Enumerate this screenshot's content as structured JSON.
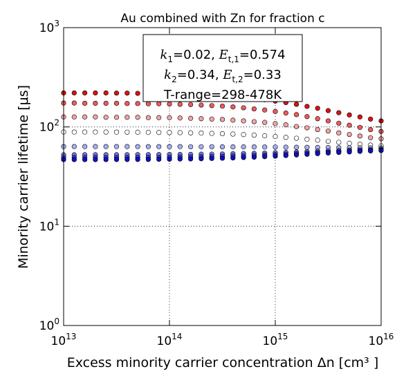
{
  "chart_data": {
    "type": "scatter",
    "title": "Au combined with Zn for fraction c",
    "xlabel": "Excess minority carrier concentration Δn [cm³ ]",
    "ylabel": "Minority carrier lifetime [μs]",
    "xscale": "log",
    "yscale": "log",
    "grid": true,
    "xlim": [
      10000000000000.0,
      1e+16
    ],
    "ylim": [
      1,
      1000
    ],
    "xticks": [
      {
        "value": 10000000000000.0,
        "base": "10",
        "exponent": "13"
      },
      {
        "value": 100000000000000.0,
        "base": "10",
        "exponent": "14"
      },
      {
        "value": 1000000000000000.0,
        "base": "10",
        "exponent": "15"
      },
      {
        "value": 1e+16,
        "base": "10",
        "exponent": "16"
      }
    ],
    "yticks": [
      {
        "value": 1,
        "base": "10",
        "exponent": "0"
      },
      {
        "value": 10,
        "base": "10",
        "exponent": "1"
      },
      {
        "value": 100,
        "base": "10",
        "exponent": "2"
      },
      {
        "value": 1000,
        "base": "10",
        "exponent": "3"
      }
    ],
    "annotation": [
      [
        {
          "text": "k",
          "math": true
        },
        {
          "text": "1",
          "sub": true
        },
        {
          "text": "=0.02, "
        },
        {
          "text": "E",
          "math": true
        },
        {
          "text": "t,1",
          "sub": true
        },
        {
          "text": "=0.574"
        }
      ],
      [
        {
          "text": "k",
          "math": true
        },
        {
          "text": "2",
          "sub": true
        },
        {
          "text": "=0.34, "
        },
        {
          "text": "E",
          "math": true
        },
        {
          "text": "t,2",
          "sub": true
        },
        {
          "text": "=0.33"
        }
      ],
      [
        {
          "text": "T-range=298-478K"
        }
      ]
    ],
    "x": [
      10000000000000.0,
      12590000000000.0,
      15850000000000.0,
      19950000000000.0,
      25120000000000.0,
      31620000000000.0,
      39810000000000.0,
      50120000000000.0,
      63100000000000.0,
      79430000000000.0,
      100000000000000.0,
      125900000000000.0,
      158500000000000.0,
      199500000000000.0,
      251200000000000.0,
      316200000000000.0,
      398100000000000.0,
      501200000000000.0,
      631000000000000.0,
      794300000000000.0,
      1000000000000000.0,
      1259000000000000.0,
      1585000000000000.0,
      1995000000000000.0,
      2512000000000000.0,
      3162000000000000.0,
      3981000000000000.0,
      5012000000000000.0,
      6310000000000000.0,
      7943000000000000.0,
      1e+16
    ],
    "series": [
      {
        "color": "#dd1010",
        "values": [
          220,
          220,
          220,
          220,
          220,
          219,
          219,
          218,
          218,
          217,
          216,
          214,
          213,
          211,
          209,
          206,
          202,
          198,
          194,
          188,
          182,
          176,
          169,
          161,
          154,
          146,
          139,
          132,
          126,
          120,
          115
        ]
      },
      {
        "color": "#ee5a5a",
        "values": [
          174,
          174,
          173,
          173,
          173,
          173,
          172,
          172,
          171,
          171,
          170,
          169,
          168,
          166,
          164,
          162,
          159,
          156,
          152,
          148,
          143,
          138,
          133,
          127,
          121,
          115,
          109,
          104,
          99,
          94,
          90
        ]
      },
      {
        "color": "#f5a3a3",
        "values": [
          126,
          126,
          126,
          126,
          125,
          125,
          125,
          125,
          124,
          124,
          124,
          123,
          122,
          121,
          120,
          119,
          117,
          115,
          113,
          111,
          108,
          105,
          101,
          98,
          94,
          91,
          87,
          84,
          81,
          78,
          76
        ]
      },
      {
        "color": "#ffffff",
        "values": [
          88.9,
          88.8,
          88.8,
          88.8,
          88.7,
          88.6,
          88.5,
          88.4,
          88.2,
          88.0,
          87.8,
          87.5,
          87.1,
          86.7,
          86.1,
          85.5,
          84.7,
          83.7,
          82.7,
          81.4,
          80.1,
          78.5,
          76.9,
          75.2,
          73.5,
          71.7,
          70.0,
          68.4,
          67.0,
          65.6,
          64.5
        ]
      },
      {
        "color": "#a8aef5",
        "values": [
          63.4,
          63.4,
          63.4,
          63.4,
          63.4,
          63.4,
          63.4,
          63.3,
          63.3,
          63.3,
          63.3,
          63.3,
          63.2,
          63.2,
          63.2,
          63.1,
          63.0,
          63.0,
          62.9,
          62.8,
          62.7,
          62.5,
          62.4,
          62.3,
          62.1,
          62.0,
          61.8,
          61.7,
          61.6,
          61.5,
          61.4
        ]
      },
      {
        "color": "#7474e6",
        "values": [
          52.4,
          52.4,
          52.5,
          52.5,
          52.5,
          52.5,
          52.5,
          52.6,
          52.6,
          52.7,
          52.8,
          52.8,
          52.9,
          53.1,
          53.2,
          53.4,
          53.7,
          53.9,
          54.2,
          54.6,
          55.0,
          55.4,
          55.9,
          56.4,
          56.9,
          57.4,
          57.9,
          58.4,
          58.8,
          59.2,
          59.5
        ]
      },
      {
        "color": "#3a3ad6",
        "values": [
          49.2,
          49.3,
          49.3,
          49.3,
          49.3,
          49.4,
          49.4,
          49.4,
          49.5,
          49.6,
          49.7,
          49.8,
          49.9,
          50.1,
          50.3,
          50.6,
          50.9,
          51.2,
          51.6,
          52.1,
          52.6,
          53.2,
          53.8,
          54.5,
          55.2,
          55.8,
          56.5,
          57.1,
          57.6,
          58.1,
          58.6
        ]
      },
      {
        "color": "#1010c0",
        "values": [
          46.9,
          46.9,
          46.9,
          46.9,
          46.9,
          47.0,
          47.0,
          47.1,
          47.1,
          47.2,
          47.3,
          47.5,
          47.6,
          47.8,
          48.1,
          48.4,
          48.7,
          49.2,
          49.6,
          50.2,
          50.8,
          51.5,
          52.2,
          53.0,
          53.8,
          54.6,
          55.3,
          56.0,
          56.7,
          57.3,
          57.8
        ]
      }
    ]
  }
}
